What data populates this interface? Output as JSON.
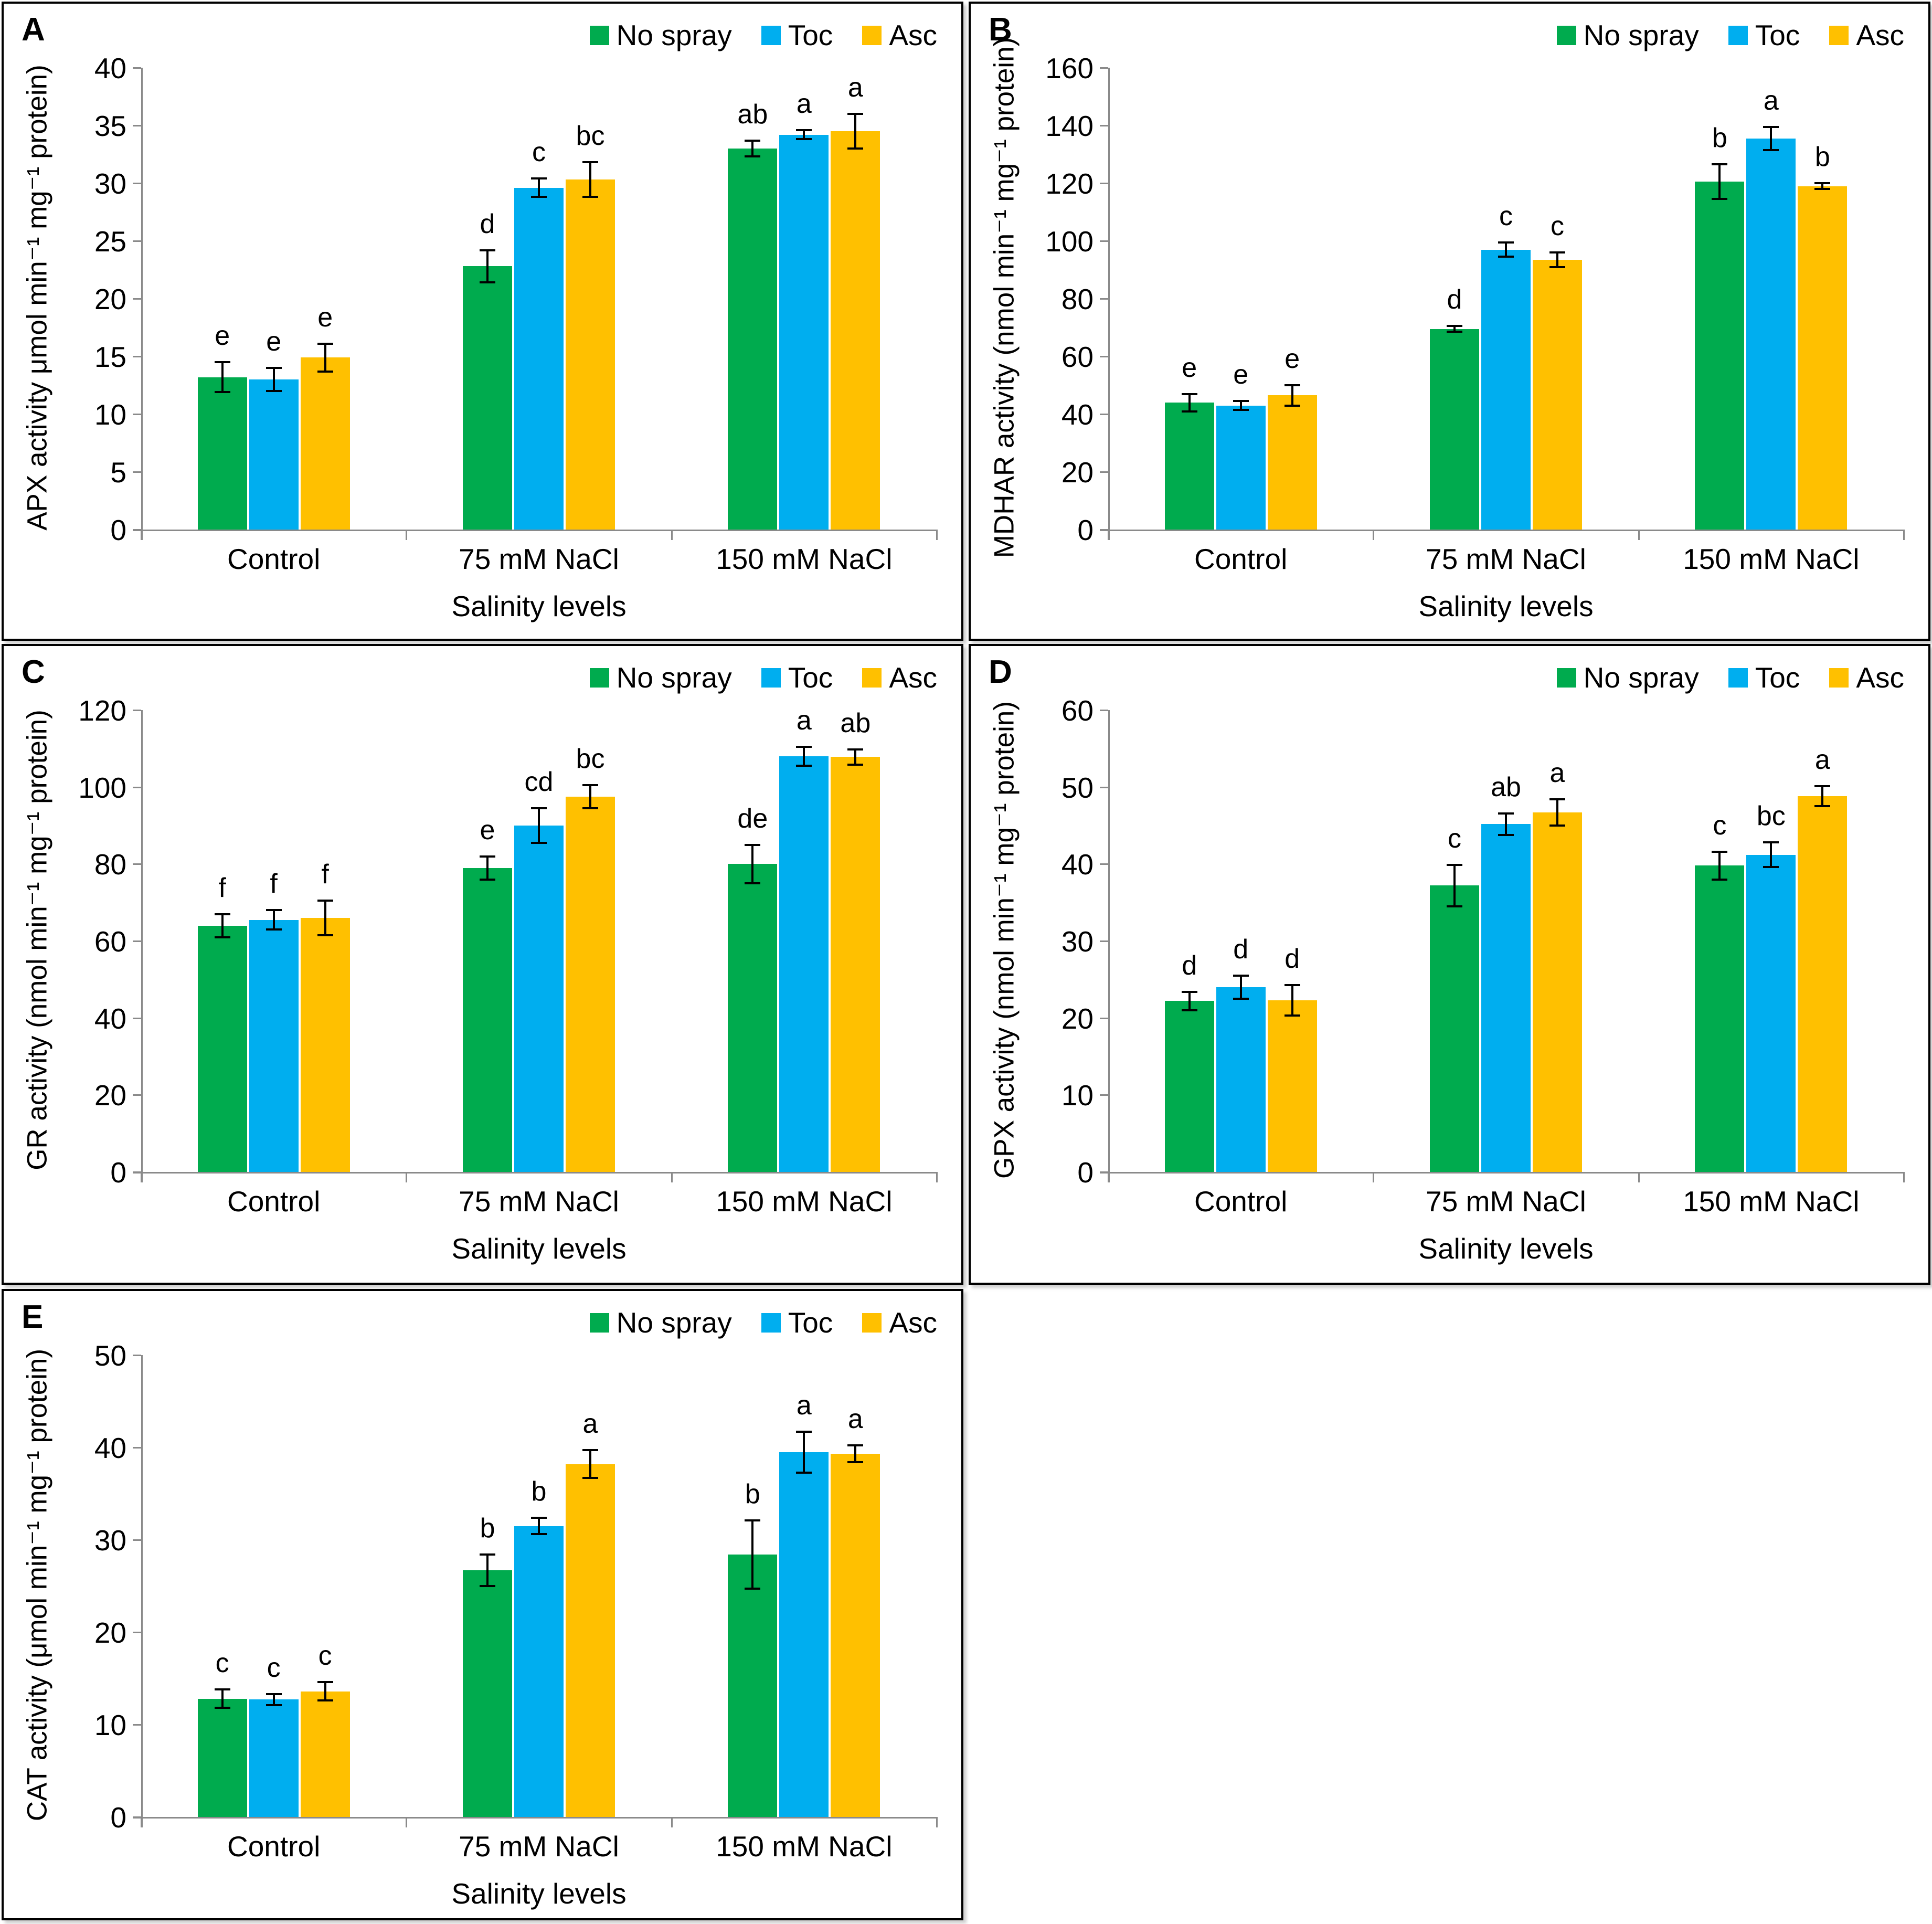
{
  "figure": {
    "panels": [
      "A",
      "B",
      "C",
      "D",
      "E"
    ],
    "legend": {
      "position": "top-right",
      "items": [
        {
          "id": "no-spray",
          "label": "No spray",
          "color": "#00AB4E"
        },
        {
          "id": "toc",
          "label": "Toc",
          "color": "#00AEEF"
        },
        {
          "id": "asc",
          "label": "Asc",
          "color": "#FFC000"
        }
      ]
    },
    "axis_color": "#8A8A8A",
    "text_color": "#000000",
    "error_bar_color": "#000000",
    "xlabel": "Salinity levels"
  },
  "chart_data": [
    {
      "type": "bar",
      "panel": "A",
      "ylabel": "APX activity μmol min⁻¹ mg⁻¹ protein)",
      "xlabel": "Salinity levels",
      "ylim": [
        0,
        40
      ],
      "ystep": 5,
      "grid": false,
      "legend_position": "top-right",
      "categories": [
        "Control",
        "75 mM NaCl",
        "150 mM NaCl"
      ],
      "series": [
        {
          "name": "No spray",
          "values": [
            13.2,
            22.8,
            33.0
          ],
          "errors": [
            1.3,
            1.4,
            0.7
          ],
          "letters": [
            "e",
            "d",
            "ab"
          ]
        },
        {
          "name": "Toc",
          "values": [
            13.0,
            29.6,
            34.2
          ],
          "errors": [
            1.0,
            0.8,
            0.4
          ],
          "letters": [
            "e",
            "c",
            "a"
          ]
        },
        {
          "name": "Asc",
          "values": [
            14.9,
            30.3,
            34.5
          ],
          "errors": [
            1.2,
            1.5,
            1.5
          ],
          "letters": [
            "e",
            "bc",
            "a"
          ]
        }
      ]
    },
    {
      "type": "bar",
      "panel": "B",
      "ylabel": "MDHAR activity (nmol min⁻¹ mg⁻¹ protein)",
      "xlabel": "Salinity levels",
      "ylim": [
        0,
        160
      ],
      "ystep": 20,
      "grid": false,
      "legend_position": "top-right",
      "categories": [
        "Control",
        "75 mM NaCl",
        "150 mM NaCl"
      ],
      "series": [
        {
          "name": "No spray",
          "values": [
            44,
            69.5,
            120.5
          ],
          "errors": [
            3,
            1,
            6
          ],
          "letters": [
            "e",
            "d",
            "b"
          ]
        },
        {
          "name": "Toc",
          "values": [
            43,
            97,
            135.5
          ],
          "errors": [
            1.5,
            2.5,
            4
          ],
          "letters": [
            "e",
            "c",
            "a"
          ]
        },
        {
          "name": "Asc",
          "values": [
            46.5,
            93.5,
            119
          ],
          "errors": [
            3.5,
            2.5,
            1
          ],
          "letters": [
            "e",
            "c",
            "b"
          ]
        }
      ]
    },
    {
      "type": "bar",
      "panel": "C",
      "ylabel": "GR activity (nmol min⁻¹ mg⁻¹ protein)",
      "xlabel": "Salinity levels",
      "ylim": [
        0,
        120
      ],
      "ystep": 20,
      "grid": false,
      "legend_position": "top-right",
      "categories": [
        "Control",
        "75 mM NaCl",
        "150 mM NaCl"
      ],
      "series": [
        {
          "name": "No spray",
          "values": [
            64,
            79,
            80
          ],
          "errors": [
            3,
            3,
            5
          ],
          "letters": [
            "f",
            "e",
            "de"
          ]
        },
        {
          "name": "Toc",
          "values": [
            65.5,
            90,
            108
          ],
          "errors": [
            2.5,
            4.5,
            2.5
          ],
          "letters": [
            "f",
            "cd",
            "a"
          ]
        },
        {
          "name": "Asc",
          "values": [
            66,
            97.5,
            107.8
          ],
          "errors": [
            4.5,
            3,
            2
          ],
          "letters": [
            "f",
            "bc",
            "ab"
          ]
        }
      ]
    },
    {
      "type": "bar",
      "panel": "D",
      "ylabel": "GPX activity (nmol min⁻¹ mg⁻¹ protein)",
      "xlabel": "Salinity levels",
      "ylim": [
        0,
        60
      ],
      "ystep": 10,
      "grid": false,
      "legend_position": "top-right",
      "categories": [
        "Control",
        "75 mM NaCl",
        "150 mM NaCl"
      ],
      "series": [
        {
          "name": "No spray",
          "values": [
            22.2,
            37.2,
            39.8
          ],
          "errors": [
            1.2,
            2.7,
            1.8
          ],
          "letters": [
            "d",
            "c",
            "c"
          ]
        },
        {
          "name": "Toc",
          "values": [
            24,
            45.2,
            41.2
          ],
          "errors": [
            1.5,
            1.4,
            1.6
          ],
          "letters": [
            "d",
            "ab",
            "bc"
          ]
        },
        {
          "name": "Asc",
          "values": [
            22.3,
            46.7,
            48.8
          ],
          "errors": [
            2,
            1.7,
            1.3
          ],
          "letters": [
            "d",
            "a",
            "a"
          ]
        }
      ]
    },
    {
      "type": "bar",
      "panel": "E",
      "ylabel": "CAT activity (μmol min⁻¹ mg⁻¹ protein)",
      "xlabel": "Salinity levels",
      "ylim": [
        0,
        50
      ],
      "ystep": 10,
      "grid": false,
      "legend_position": "top-right",
      "categories": [
        "Control",
        "75 mM NaCl",
        "150 mM NaCl"
      ],
      "series": [
        {
          "name": "No spray",
          "values": [
            12.8,
            26.7,
            28.4
          ],
          "errors": [
            1.0,
            1.7,
            3.7
          ],
          "letters": [
            "c",
            "b",
            "b"
          ]
        },
        {
          "name": "Toc",
          "values": [
            12.7,
            31.5,
            39.5
          ],
          "errors": [
            0.6,
            0.9,
            2.2
          ],
          "letters": [
            "c",
            "b",
            "a"
          ]
        },
        {
          "name": "Asc",
          "values": [
            13.6,
            38.2,
            39.3
          ],
          "errors": [
            1.0,
            1.5,
            0.9
          ],
          "letters": [
            "c",
            "a",
            "a"
          ]
        }
      ]
    }
  ]
}
